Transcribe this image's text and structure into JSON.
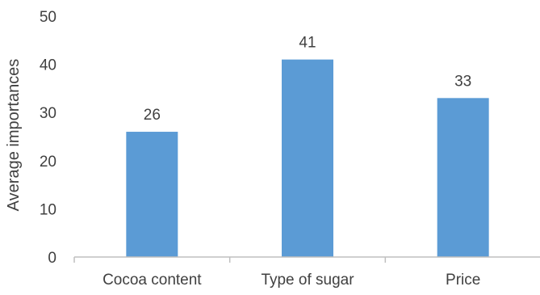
{
  "chart_data": {
    "type": "bar",
    "categories": [
      "Cocoa content",
      "Type of sugar",
      "Price"
    ],
    "values": [
      26,
      41,
      33
    ],
    "data_labels": [
      "26",
      "41",
      "33"
    ],
    "title": "",
    "xlabel": "",
    "ylabel": "Average importances",
    "ylim": [
      0,
      50
    ],
    "yticks": [
      0,
      10,
      20,
      30,
      40,
      50
    ],
    "grid": false,
    "legend": "none",
    "bar_color": "#5B9BD5",
    "axis_color": "#BFBFBF"
  }
}
